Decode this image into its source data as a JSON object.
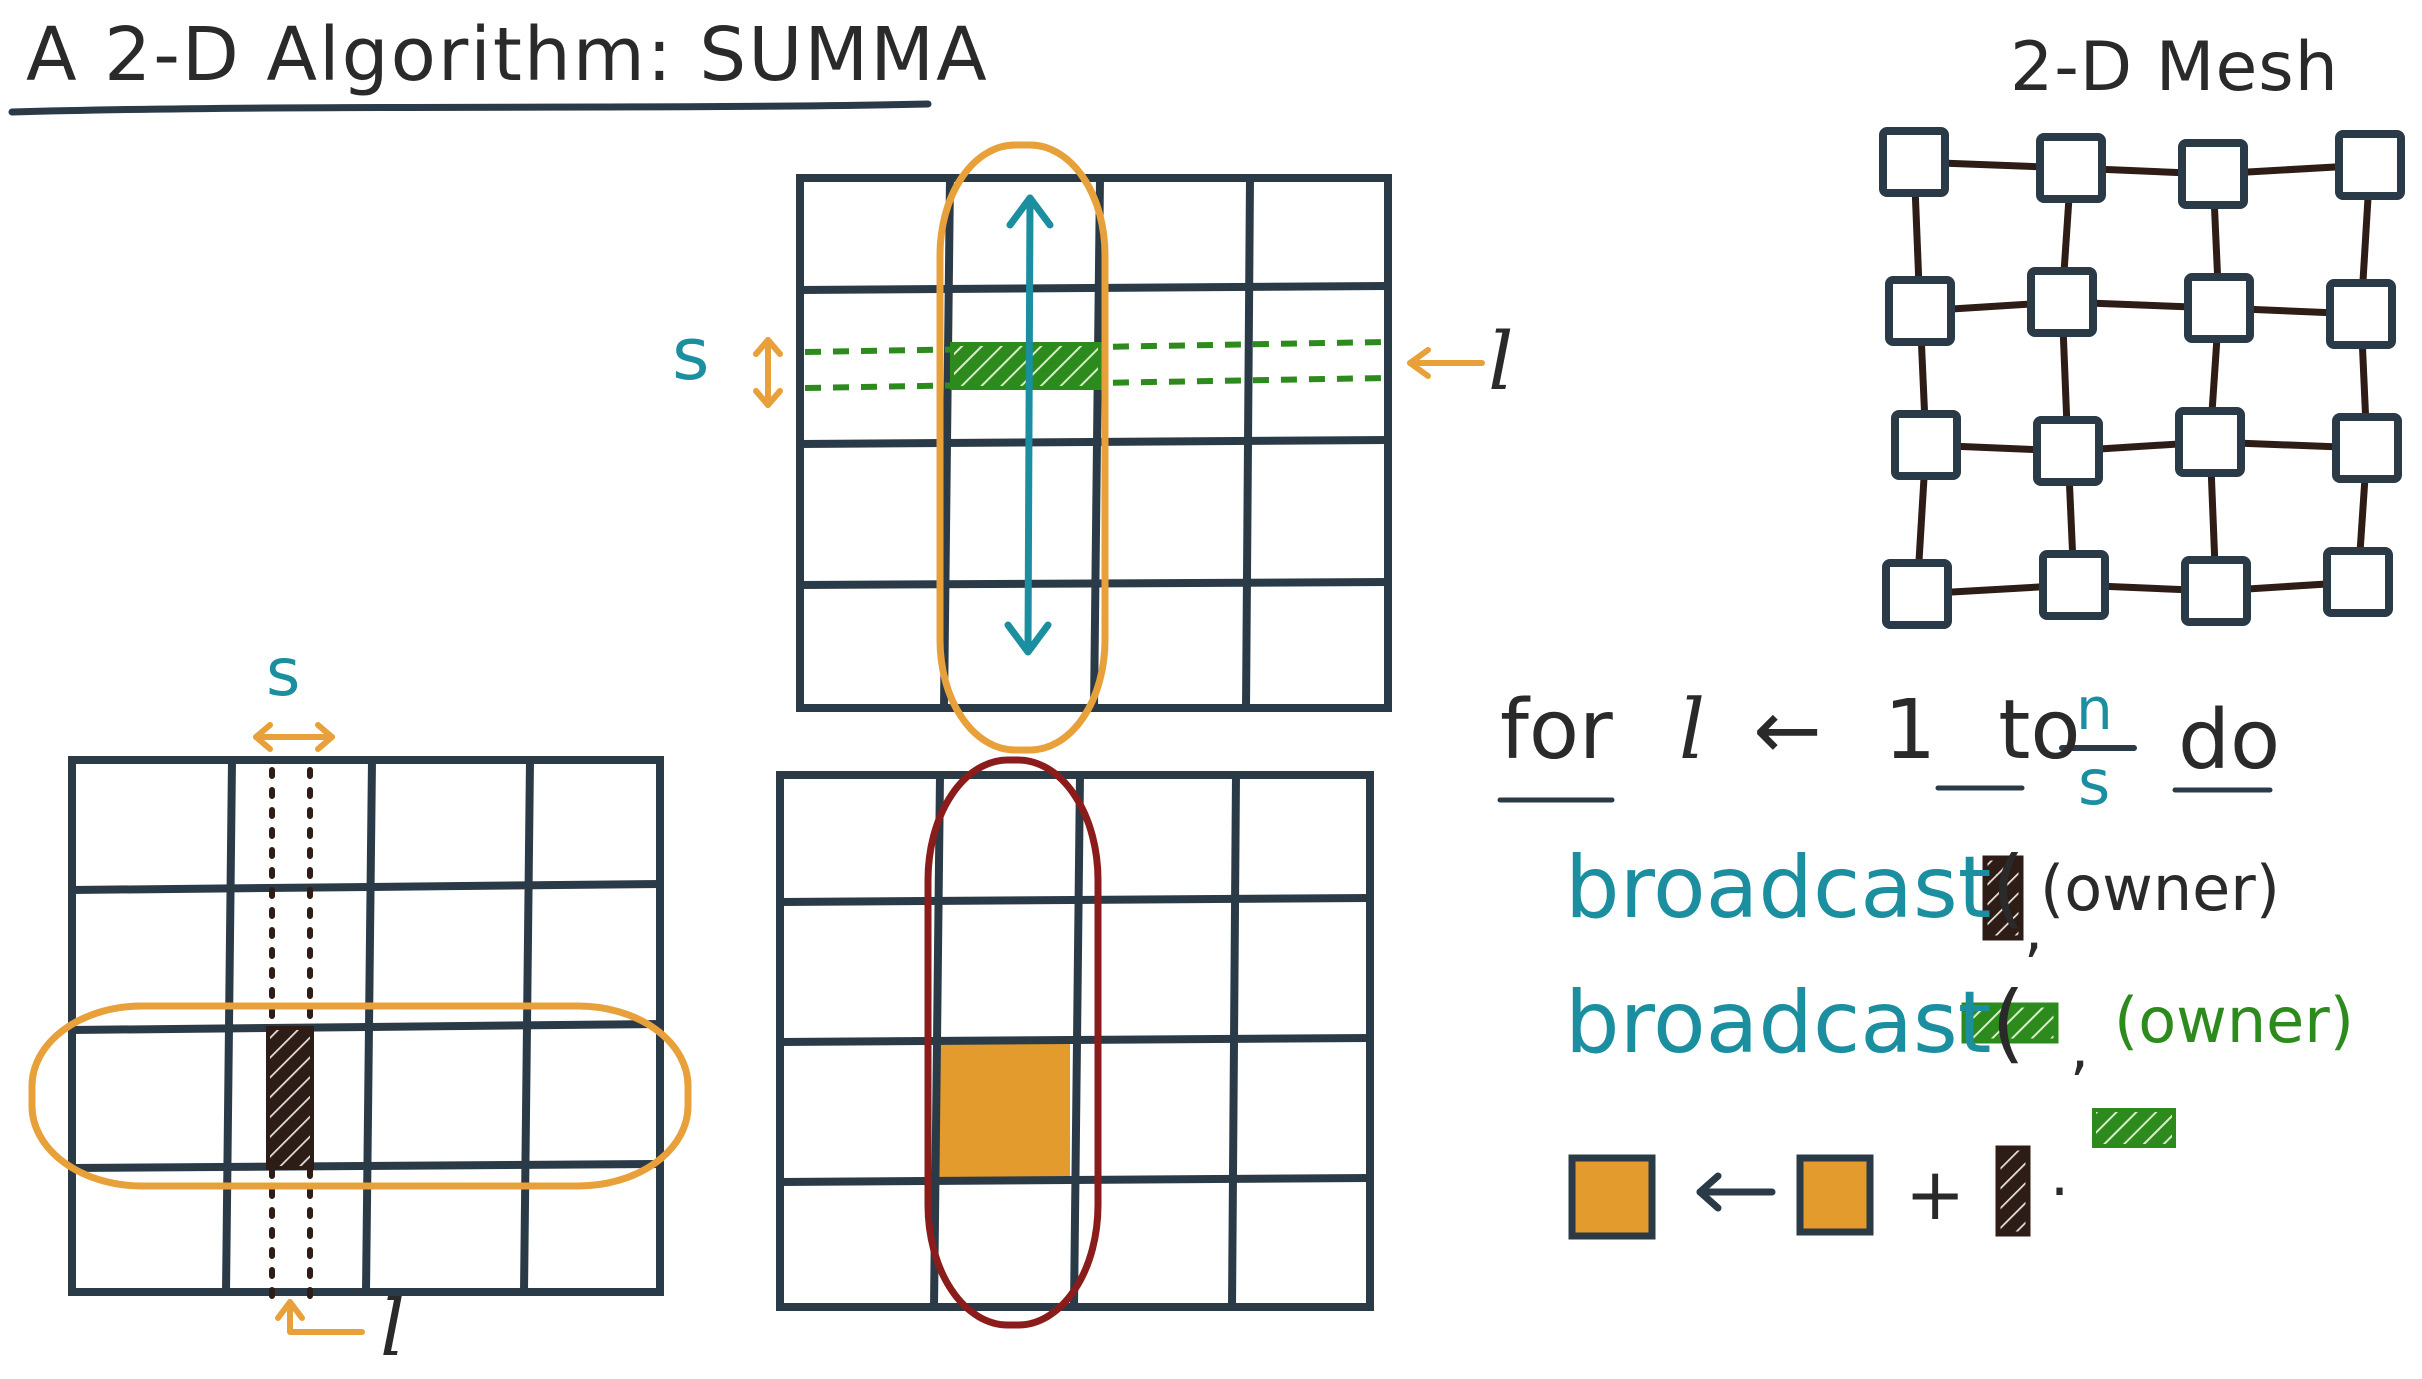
{
  "title": "A 2-D Algorithm: SUMMA",
  "mesh": {
    "title": "2-D Mesh",
    "rows": 4,
    "cols": 4
  },
  "matrices": {
    "top_label_s": "s",
    "top_label_l": "l",
    "left_label_s": "s",
    "left_label_l": "l"
  },
  "algorithm": {
    "for_kw": "for",
    "loop_var": "l",
    "arrow": "←",
    "start": "1",
    "to_kw": "to",
    "frac_num": "n",
    "frac_den": "s",
    "do_kw": "do",
    "bc1_fn": "broadcast",
    "bc1_owner": "(owner)",
    "bc2_fn": "broadcast",
    "bc2_owner": "(owner)",
    "update_arrow": "←",
    "plus": "+",
    "dot": "·"
  },
  "colors": {
    "grid": "#2b3a47",
    "orange": "#e8a13a",
    "teal": "#1b8fa0",
    "green": "#2d8a1d",
    "darkred": "#8b1c1c",
    "brown": "#2e1c16",
    "fill_orange": "#e39b2e"
  }
}
